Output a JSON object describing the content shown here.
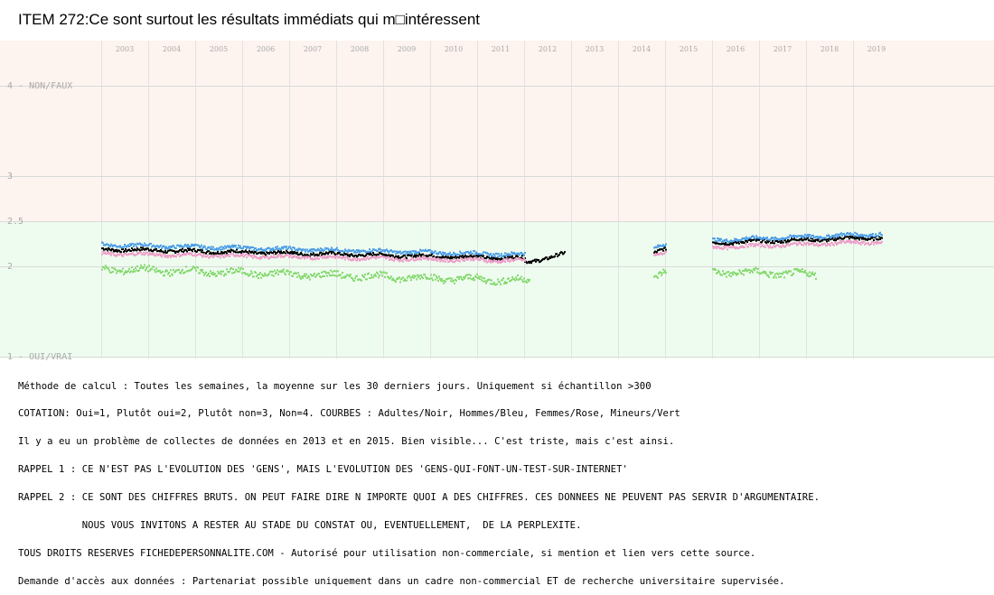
{
  "title": "ITEM 272:Ce sont surtout les résultats immédiats qui m□intéressent",
  "chart_data": {
    "type": "scatter",
    "title": "ITEM 272:Ce sont surtout les résultats immédiats qui m□intéressent",
    "xlabel": "",
    "ylabel": "",
    "ylim": [
      1,
      4
    ],
    "y_inverted": true,
    "x_tick_labels": [
      "2003",
      "2004",
      "2005",
      "2006",
      "2007",
      "2008",
      "2009",
      "2010",
      "2011",
      "2012",
      "2013",
      "2014",
      "2015",
      "2016",
      "2017",
      "2018",
      "2019"
    ],
    "y_tick_labels": [
      {
        "value": 4,
        "label": "4 - NON/FAUX"
      },
      {
        "value": 3,
        "label": "3"
      },
      {
        "value": 2.5,
        "label": "2.5"
      },
      {
        "value": 2,
        "label": "2"
      },
      {
        "value": 1,
        "label": "1 - OUI/VRAI"
      }
    ],
    "background_bands": [
      {
        "from": 2.5,
        "to": 4,
        "color": "#fdf3ef"
      },
      {
        "from": 1,
        "to": 2.5,
        "color": "#eefcef"
      }
    ],
    "grid": true,
    "series": [
      {
        "name": "Adultes",
        "color": "#000000",
        "segments": [
          {
            "x_start": 2003.0,
            "x_end": 2012.0,
            "y_start": 2.2,
            "y_end": 2.1
          },
          {
            "x_start": 2012.0,
            "x_end": 2012.85,
            "y_start": 2.05,
            "y_end": 2.15
          },
          {
            "x_start": 2014.75,
            "x_end": 2015.0,
            "y_start": 2.15,
            "y_end": 2.2
          },
          {
            "x_start": 2016.0,
            "x_end": 2019.6,
            "y_start": 2.27,
            "y_end": 2.33
          }
        ]
      },
      {
        "name": "Hommes",
        "color": "#4f9fe8",
        "segments": [
          {
            "x_start": 2003.0,
            "x_end": 2012.0,
            "y_start": 2.25,
            "y_end": 2.14
          },
          {
            "x_start": 2014.75,
            "x_end": 2015.0,
            "y_start": 2.2,
            "y_end": 2.25
          },
          {
            "x_start": 2016.0,
            "x_end": 2019.6,
            "y_start": 2.3,
            "y_end": 2.37
          }
        ]
      },
      {
        "name": "Femmes",
        "color": "#ee9ec9",
        "segments": [
          {
            "x_start": 2003.0,
            "x_end": 2012.0,
            "y_start": 2.15,
            "y_end": 2.07
          },
          {
            "x_start": 2014.75,
            "x_end": 2015.0,
            "y_start": 2.12,
            "y_end": 2.15
          },
          {
            "x_start": 2016.0,
            "x_end": 2019.6,
            "y_start": 2.22,
            "y_end": 2.28
          }
        ]
      },
      {
        "name": "Mineurs",
        "color": "#86d970",
        "segments": [
          {
            "x_start": 2003.0,
            "x_end": 2012.1,
            "y_start": 1.98,
            "y_end": 1.85
          },
          {
            "x_start": 2014.75,
            "x_end": 2015.0,
            "y_start": 1.85,
            "y_end": 1.95
          },
          {
            "x_start": 2016.0,
            "x_end": 2018.2,
            "y_start": 1.95,
            "y_end": 1.92
          }
        ]
      }
    ]
  },
  "notes": [
    "Méthode de calcul : Toutes les semaines, la moyenne sur les 30 derniers jours. Uniquement si échantillon >300",
    "COTATION: Oui=1, Plutôt oui=2, Plutôt non=3, Non=4. COURBES : Adultes/Noir, Hommes/Bleu, Femmes/Rose, Mineurs/Vert",
    "Il y a eu un problème de collectes de données en 2013 et en 2015. Bien visible... C'est triste, mais c'est ainsi.",
    "RAPPEL 1 : CE N'EST PAS L'EVOLUTION DES 'GENS', MAIS L'EVOLUTION DES 'GENS-QUI-FONT-UN-TEST-SUR-INTERNET'",
    "RAPPEL 2 : CE SONT DES CHIFFRES BRUTS. ON PEUT FAIRE DIRE N IMPORTE QUOI A DES CHIFFRES. CES DONNEES NE PEUVENT PAS SERVIR D'ARGUMENTAIRE.",
    "           NOUS VOUS INVITONS A RESTER AU STADE DU CONSTAT OU, EVENTUELLEMENT,  DE LA PERPLEXITE.",
    "TOUS DROITS RESERVES FICHEDEPERSONNALITE.COM - Autorisé pour utilisation non-commerciale, si mention et lien vers cette source.",
    "Demande d'accès aux données : Partenariat possible uniquement dans un cadre non-commercial ET de recherche universitaire supervisée."
  ]
}
